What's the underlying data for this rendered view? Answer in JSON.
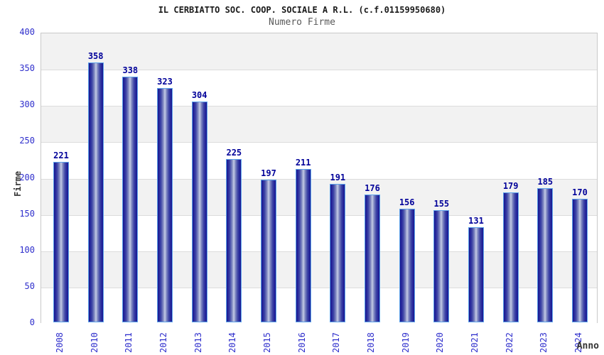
{
  "header": {
    "title": "IL CERBIATTO SOC. COOP. SOCIALE A R.L. (c.f.01159950680)",
    "subtitle": "Numero Firme"
  },
  "chart_data": {
    "type": "bar",
    "title": "IL CERBIATTO SOC. COOP. SOCIALE A R.L. (c.f.01159950680)",
    "subtitle": "Numero Firme",
    "xlabel": "Anno",
    "ylabel": "Firme",
    "categories": [
      "2008",
      "2010",
      "2011",
      "2012",
      "2013",
      "2014",
      "2015",
      "2016",
      "2017",
      "2018",
      "2019",
      "2020",
      "2021",
      "2022",
      "2023",
      "2024"
    ],
    "values": [
      221,
      358,
      338,
      323,
      304,
      225,
      197,
      211,
      191,
      176,
      156,
      155,
      131,
      179,
      185,
      170
    ],
    "ylim": [
      0,
      400
    ],
    "ytick_interval": 50,
    "yticks": [
      400,
      350,
      300,
      250,
      200,
      150,
      100,
      50,
      0
    ],
    "grid": "horizontal gridlines every 50 with alternating shaded bands",
    "legend": "none",
    "bar_labels_shown": true
  },
  "colors": {
    "bar_dark": "#18188f",
    "bar_light": "#bcc3e1",
    "bar_border": "#5da2ea",
    "tick_label": "#2e2ecc",
    "value_label": "#000099",
    "band_gray": "#f2f2f2",
    "band_white": "#ffffff",
    "gridline": "#dcdcdc",
    "plot_border": "#c9c9c9",
    "title_color": "#1a1a1a",
    "subtitle_color": "#595959",
    "axis_title_color": "#333333"
  }
}
